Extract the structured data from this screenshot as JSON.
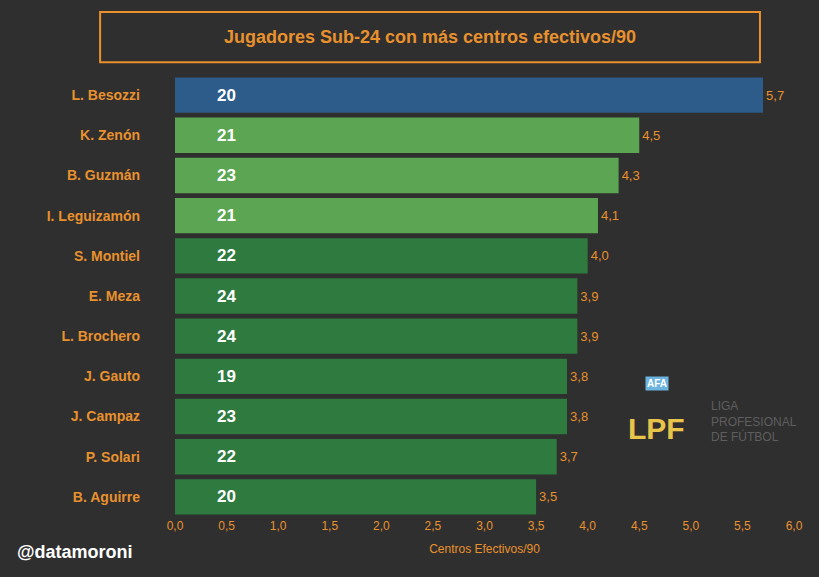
{
  "chart_data": {
    "type": "bar",
    "orientation": "horizontal",
    "title": "Jugadores Sub-24 con más centros efectivos/90",
    "x_label": "Centros Efectivos/90",
    "categories": [
      "L. Besozzi",
      "K. Zenón",
      "B. Guzmán",
      "I. Leguizamón",
      "S. Montiel",
      "E. Meza",
      "L. Brochero",
      "J. Gauto",
      "J. Campaz",
      "P. Solari",
      "B. Aguirre"
    ],
    "values": [
      5.7,
      4.5,
      4.3,
      4.1,
      4.0,
      3.9,
      3.9,
      3.8,
      3.8,
      3.7,
      3.5
    ],
    "value_labels": [
      "5,7",
      "4,5",
      "4,3",
      "4,1",
      "4,0",
      "3,9",
      "3,9",
      "3,8",
      "3,8",
      "3,7",
      "3,5"
    ],
    "ages": [
      20,
      21,
      23,
      21,
      22,
      24,
      24,
      19,
      23,
      22,
      20
    ],
    "colors": [
      "#2d5b8a",
      "#5ba553",
      "#5ba553",
      "#5ba553",
      "#2e7a3f",
      "#2e7a3f",
      "#2e7a3f",
      "#2e7a3f",
      "#2e7a3f",
      "#2e7a3f",
      "#2e7a3f"
    ],
    "data_labels": true,
    "grid": false,
    "xlim": [
      0,
      6
    ],
    "xticks": [
      {
        "value": 0,
        "label": "0,0"
      },
      {
        "value": 0.5,
        "label": "0,5"
      },
      {
        "value": 1,
        "label": "1,0"
      },
      {
        "value": 1.5,
        "label": "1,5"
      },
      {
        "value": 2,
        "label": "2,0"
      },
      {
        "value": 2.5,
        "label": "2,5"
      },
      {
        "value": 3,
        "label": "3,0"
      },
      {
        "value": 3.5,
        "label": "3,5"
      },
      {
        "value": 4,
        "label": "4,0"
      },
      {
        "value": 4.5,
        "label": "4,5"
      },
      {
        "value": 5,
        "label": "5,0"
      },
      {
        "value": 5.5,
        "label": "5,5"
      },
      {
        "value": 6,
        "label": "6,0"
      }
    ],
    "source": "@datamoroni",
    "logo_badge": "AFA",
    "logo_mark": "LPF",
    "logo_text": [
      "LIGA",
      "PROFESIONAL",
      "DE FÚTBOL"
    ]
  }
}
